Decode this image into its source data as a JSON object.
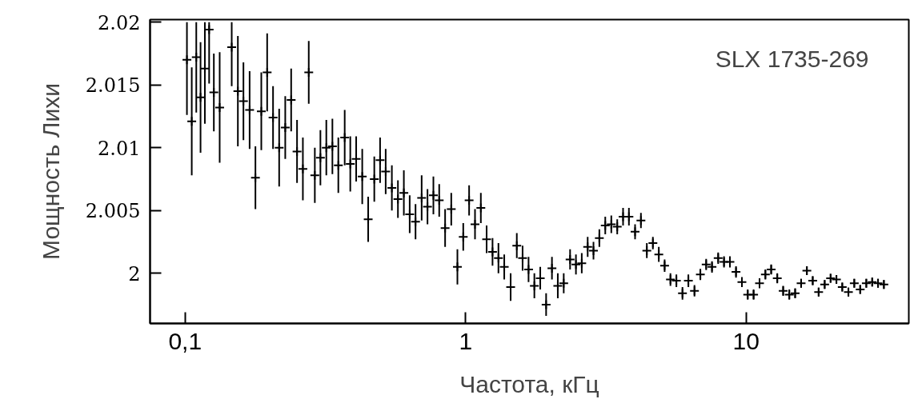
{
  "chart_data": {
    "type": "scatter",
    "xlabel": "Частота, кГц",
    "ylabel": "Мощность Лихи",
    "annotations": [
      "SLX 1735-269"
    ],
    "log": "x",
    "xlim": [
      0.075,
      38
    ],
    "ylim": [
      1.996,
      2.0202
    ],
    "xticks": [
      {
        "value": 0.1,
        "label": "0,1"
      },
      1,
      10
    ],
    "yticks": [
      2,
      2.005,
      2.01,
      2.015,
      2.02
    ],
    "grid": false,
    "marker": "cross",
    "series": [
      {
        "color": "#000000",
        "x": [
          0.1015,
          0.1056,
          0.1096,
          0.1135,
          0.1176,
          0.1218,
          0.1266,
          0.1328,
          0.1466,
          0.1542,
          0.1614,
          0.1698,
          0.1781,
          0.1869,
          0.1961,
          0.2058,
          0.2164,
          0.2275,
          0.2388,
          0.2506,
          0.2629,
          0.2759,
          0.29,
          0.3036,
          0.3187,
          0.335,
          0.3517,
          0.3706,
          0.388,
          0.4072,
          0.428,
          0.4494,
          0.4725,
          0.4955,
          0.5188,
          0.5458,
          0.5737,
          0.6022,
          0.6318,
          0.6628,
          0.697,
          0.7312,
          0.7675,
          0.805,
          0.845,
          0.8887,
          0.9347,
          0.9806,
          1.029,
          1.08,
          1.133,
          1.188,
          1.247,
          1.309,
          1.373,
          1.447,
          1.522,
          1.596,
          1.676,
          1.758,
          1.845,
          1.936,
          2.031,
          2.131,
          2.237,
          2.357,
          2.473,
          2.594,
          2.723,
          2.856,
          2.997,
          3.146,
          3.306,
          3.471,
          3.641,
          3.82,
          4.018,
          4.216,
          4.425,
          4.651,
          4.882,
          5.121,
          5.372,
          5.64,
          5.929,
          6.223,
          6.543,
          6.867,
          7.202,
          7.555,
          7.948,
          8.338,
          8.753,
          9.201,
          9.658,
          10.13,
          10.63,
          11.16,
          11.71,
          12.28,
          12.91,
          13.55,
          14.25,
          14.95,
          15.7,
          16.46,
          17.27,
          18.13,
          19.05,
          20.0,
          20.98,
          22.01,
          23.15,
          24.29,
          25.5,
          26.81,
          28.14,
          29.52,
          30.97
        ],
        "values": [
          2.017,
          2.0121,
          2.0172,
          2.014,
          2.0163,
          2.0194,
          2.0144,
          2.0132,
          2.018,
          2.0145,
          2.0137,
          2.013,
          2.0076,
          2.0129,
          2.016,
          2.0124,
          2.01,
          2.0116,
          2.0138,
          2.0097,
          2.0083,
          2.016,
          2.0078,
          2.0092,
          2.01,
          2.0101,
          2.0086,
          2.0108,
          2.0087,
          2.0091,
          2.0077,
          2.0043,
          2.0075,
          2.009,
          2.0081,
          2.0068,
          2.0059,
          2.0064,
          2.0047,
          2.0041,
          2.006,
          2.0053,
          2.0062,
          2.0058,
          2.0036,
          2.0051,
          2.0005,
          2.0029,
          2.0058,
          2.0039,
          2.0052,
          2.0027,
          2.0017,
          2.0012,
          2.0005,
          1.9989,
          2.0022,
          2.0012,
          2.0003,
          1.999,
          1.9996,
          1.9975,
          2.0004,
          1.999,
          1.9992,
          2.0011,
          2.0007,
          2.0008,
          2.0021,
          2.0018,
          2.0028,
          2.0038,
          2.0039,
          2.0037,
          2.0045,
          2.0045,
          2.0033,
          2.0042,
          2.0018,
          2.0024,
          2.0015,
          2.0006,
          1.9995,
          1.9994,
          1.9984,
          1.9994,
          1.9986,
          1.9999,
          2.0007,
          2.0005,
          2.0012,
          2.0009,
          2.0009,
          2.0001,
          1.9993,
          1.9983,
          1.9983,
          1.9992,
          1.9999,
          2.0003,
          1.9996,
          1.9986,
          1.9983,
          1.9984,
          1.9992,
          2.0002,
          1.9994,
          1.9985,
          1.9991,
          1.9996,
          1.9995,
          1.9989,
          1.9985,
          1.9992,
          1.9987,
          1.9992,
          1.9993,
          1.9992,
          1.9991
        ],
        "errors": [
          [
            2.0126,
            2.02
          ],
          0.0043,
          [
            2.0128,
            2.02
          ],
          0.0044,
          [
            2.0119,
            2.02
          ],
          [
            2.0151,
            2.02
          ],
          0.0031,
          0.0044,
          [
            2.0149,
            2.02
          ],
          0.0044,
          0.0031,
          0.0031,
          0.0025,
          0.0031,
          0.0031,
          0.0025,
          0.0031,
          0.0025,
          0.0025,
          0.0025,
          0.0025,
          0.0025,
          0.0022,
          0.0022,
          0.0022,
          0.0022,
          0.0022,
          0.0022,
          0.0022,
          0.0018,
          0.0022,
          0.0018,
          0.0018,
          0.0018,
          0.0018,
          0.0018,
          0.0015,
          0.0018,
          0.0015,
          0.0014,
          0.0018,
          0.0014,
          0.0015,
          0.0013,
          0.0015,
          0.0013,
          0.0014,
          0.0011,
          0.0012,
          0.0012,
          0.0012,
          0.0011,
          0.0011,
          0.0012,
          0.001,
          0.0011,
          0.001,
          0.001,
          0.001,
          0.001,
          0.0009,
          0.0009,
          0.0009,
          0.001,
          0.0008,
          0.0008,
          0.0008,
          0.0008,
          0.0008,
          0.0007,
          0.0007,
          0.0007,
          0.0007,
          0.0006,
          0.0007,
          0.0007,
          0.0006,
          0.0006,
          0.0006,
          0.0005,
          0.0006,
          0.0005,
          0.0005,
          0.0005,
          0.0005,
          0.0005,
          0.00045,
          0.00045,
          0.00045,
          0.00045,
          0.00045,
          0.00045,
          0.00045,
          0.00045,
          0.0004,
          0.0004,
          0.0004,
          0.0004,
          0.0004,
          0.0004,
          0.0004,
          0.0004,
          0.0004,
          0.0004,
          0.00035,
          0.00035,
          0.00035,
          0.00035,
          0.00035,
          0.00035,
          0.00035,
          0.00035,
          0.00035,
          0.00035,
          0.00035,
          0.00035,
          0.00035,
          0.00035,
          0.00035
        ]
      }
    ]
  }
}
